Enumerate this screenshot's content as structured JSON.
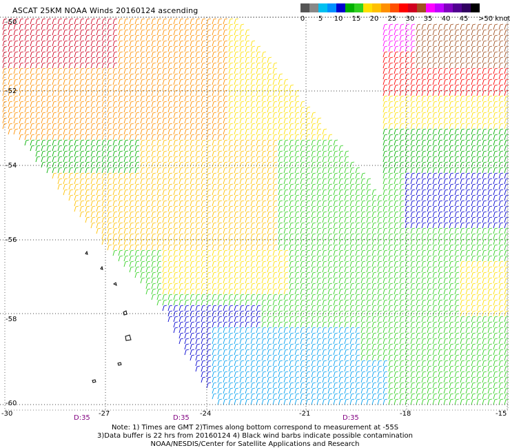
{
  "title": "ASCAT 25KM NOAA Winds 20160124 ascending",
  "legend": {
    "ticks": [
      "0",
      "5",
      "10",
      "15",
      "20",
      "25",
      "30",
      "35",
      "40",
      "45"
    ],
    "end_label": ">50 knots",
    "colors": [
      "#555555",
      "#888888",
      "#00c0f0",
      "#0090ff",
      "#0000d0",
      "#00b000",
      "#30d020",
      "#ffe000",
      "#ffc000",
      "#ff9000",
      "#ff5000",
      "#ff0000",
      "#d00020",
      "#a05020",
      "#ff00ff",
      "#c000ff",
      "#8000c0",
      "#500090",
      "#300060",
      "#000000"
    ]
  },
  "axes": {
    "lat_labels": [
      "-50",
      "-52",
      "-54",
      "-56",
      "-58",
      "-60"
    ],
    "lon_labels": [
      "-30",
      "-27",
      "-24",
      "-21",
      "-18",
      "-15"
    ]
  },
  "time_labels": [
    "D:35",
    "D:35",
    "D:35"
  ],
  "notes": {
    "line1": "Note: 1) Times are GMT 2)Times along bottom correspond to measurement at -55S",
    "line2": "3)Data buffer is 22 hrs from 20160124 4) Black wind barbs indicate possible contamination",
    "line3": "NOAA/NESDIS/Center for Satellite Applications and Research"
  }
}
